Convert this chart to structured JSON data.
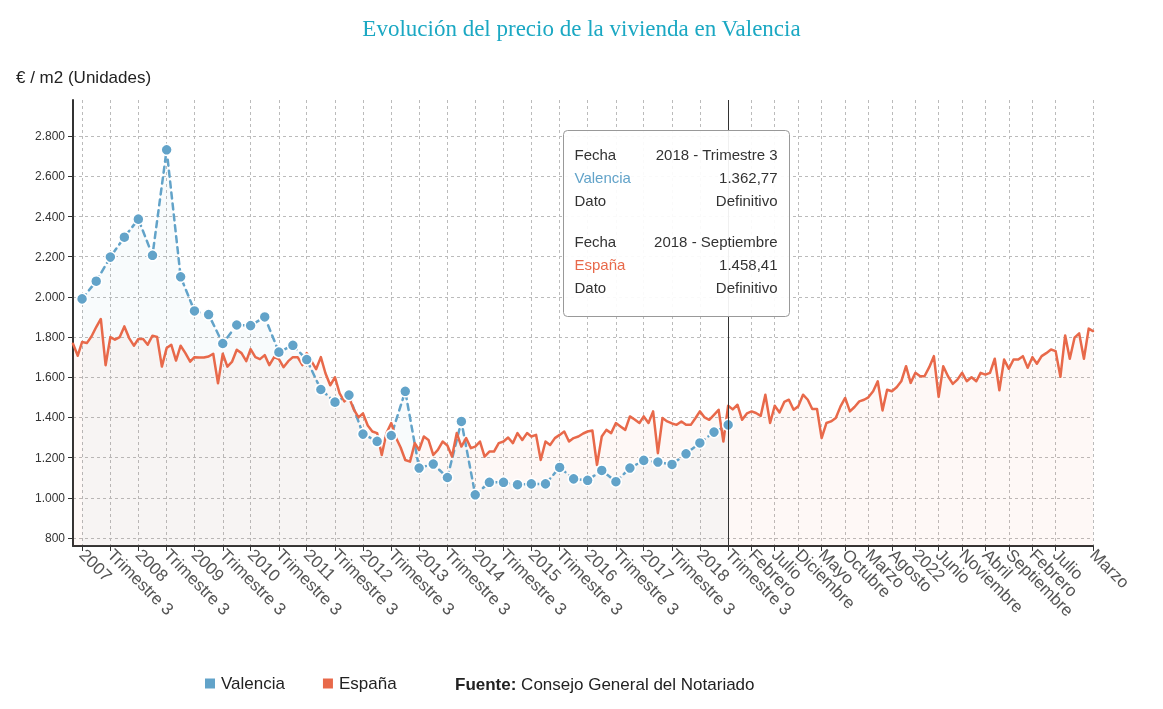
{
  "chart_data": {
    "type": "area",
    "title": "Evolución del precio de la vivienda en Valencia",
    "ylabel": "€ / m2 (Unidades)",
    "xlim": [
      "2007-01",
      "2025-03"
    ],
    "xticks": [
      {
        "value": "2007-03",
        "label": "2007"
      },
      {
        "value": "2007-09",
        "label": "Trimestre 3"
      },
      {
        "value": "2008-03",
        "label": "2008"
      },
      {
        "value": "2008-09",
        "label": "Trimestre 3"
      },
      {
        "value": "2009-03",
        "label": "2009"
      },
      {
        "value": "2009-09",
        "label": "Trimestre 3"
      },
      {
        "value": "2010-03",
        "label": "2010"
      },
      {
        "value": "2010-09",
        "label": "Trimestre 3"
      },
      {
        "value": "2011-03",
        "label": "2011"
      },
      {
        "value": "2011-09",
        "label": "Trimestre 3"
      },
      {
        "value": "2012-03",
        "label": "2012"
      },
      {
        "value": "2012-09",
        "label": "Trimestre 3"
      },
      {
        "value": "2013-03",
        "label": "2013"
      },
      {
        "value": "2013-09",
        "label": "Trimestre 3"
      },
      {
        "value": "2014-03",
        "label": "2014"
      },
      {
        "value": "2014-09",
        "label": "Trimestre 3"
      },
      {
        "value": "2015-03",
        "label": "2015"
      },
      {
        "value": "2015-09",
        "label": "Trimestre 3"
      },
      {
        "value": "2016-03",
        "label": "2016"
      },
      {
        "value": "2016-09",
        "label": "Trimestre 3"
      },
      {
        "value": "2017-03",
        "label": "2017"
      },
      {
        "value": "2017-09",
        "label": "Trimestre 3"
      },
      {
        "value": "2018-03",
        "label": "2018"
      },
      {
        "value": "2018-09",
        "label": "Trimestre 3"
      },
      {
        "value": "2019-02",
        "label": "Febrero"
      },
      {
        "value": "2019-07",
        "label": "Julio"
      },
      {
        "value": "2019-12",
        "label": "Diciembre"
      },
      {
        "value": "2020-05",
        "label": "Mayo"
      },
      {
        "value": "2020-10",
        "label": "Octubre"
      },
      {
        "value": "2021-03",
        "label": "Marzo"
      },
      {
        "value": "2021-08",
        "label": "Agosto"
      },
      {
        "value": "2022-01",
        "label": "2022"
      },
      {
        "value": "2022-06",
        "label": "Junio"
      },
      {
        "value": "2022-11",
        "label": "Noviembre"
      },
      {
        "value": "2023-04",
        "label": "Abril"
      },
      {
        "value": "2023-09",
        "label": "Septiembre"
      },
      {
        "value": "2024-02",
        "label": "Febrero"
      },
      {
        "value": "2024-07",
        "label": "Julio"
      },
      {
        "value": "2025-03",
        "label": "Marzo"
      }
    ],
    "ylim": [
      760,
      2980
    ],
    "yticks": [
      {
        "value": 800,
        "label": "800"
      },
      {
        "value": 1000,
        "label": "1.000"
      },
      {
        "value": 1200,
        "label": "1.200"
      },
      {
        "value": 1400,
        "label": "1.400"
      },
      {
        "value": 1600,
        "label": "1.600"
      },
      {
        "value": 1800,
        "label": "1.800"
      },
      {
        "value": 2000,
        "label": "2.000"
      },
      {
        "value": 2200,
        "label": "2.200"
      },
      {
        "value": 2400,
        "label": "2.400"
      },
      {
        "value": 2600,
        "label": "2.600"
      },
      {
        "value": 2800,
        "label": "2.800"
      }
    ],
    "grid": true,
    "legend": "bottom",
    "ref_lines": [
      {
        "axis": "x",
        "value": "2018-09",
        "color": "#333333"
      }
    ],
    "annotations": [
      "Fuente: Consejo General del Notariado",
      "Fecha",
      "2018 - Trimestre 3",
      "Valencia",
      "1.362,77",
      "Dato",
      "Definitivo",
      "Fecha",
      "2018 - Septiembre",
      "España",
      "1.458,41",
      "Dato",
      "Definitivo"
    ],
    "series": [
      {
        "name": "Valencia",
        "color": "#62a3c9",
        "marker": "circle",
        "line_style": "dashed",
        "x": [
          "2007-03",
          "2007-06",
          "2007-09",
          "2007-12",
          "2008-03",
          "2008-06",
          "2008-09",
          "2008-12",
          "2009-03",
          "2009-06",
          "2009-09",
          "2009-12",
          "2010-03",
          "2010-06",
          "2010-09",
          "2010-12",
          "2011-03",
          "2011-06",
          "2011-09",
          "2011-12",
          "2012-03",
          "2012-06",
          "2012-09",
          "2012-12",
          "2013-03",
          "2013-06",
          "2013-09",
          "2013-12",
          "2014-03",
          "2014-06",
          "2014-09",
          "2014-12",
          "2015-03",
          "2015-06",
          "2015-09",
          "2015-12",
          "2016-03",
          "2016-06",
          "2016-09",
          "2016-12",
          "2017-03",
          "2017-06",
          "2017-09",
          "2017-12",
          "2018-03",
          "2018-06",
          "2018-09"
        ],
        "values": [
          1990,
          2078,
          2198,
          2297,
          2387,
          2207,
          2732,
          2100,
          1930,
          1912,
          1768,
          1860,
          1857,
          1900,
          1725,
          1759,
          1688,
          1539,
          1476,
          1511,
          1317,
          1281,
          1310,
          1530,
          1148,
          1168,
          1101,
          1380,
          1015,
          1077,
          1077,
          1065,
          1069,
          1069,
          1151,
          1094,
          1087,
          1136,
          1080,
          1148,
          1186,
          1178,
          1166,
          1219,
          1273,
          1327,
          1362.77
        ]
      },
      {
        "name": "España",
        "color": "#e8694a",
        "marker": "none",
        "line_style": "solid",
        "x": [
          "2007-01",
          "2007-02",
          "2007-03",
          "2007-04",
          "2007-05",
          "2007-06",
          "2007-07",
          "2007-08",
          "2007-09",
          "2007-10",
          "2007-11",
          "2007-12",
          "2008-01",
          "2008-02",
          "2008-03",
          "2008-04",
          "2008-05",
          "2008-06",
          "2008-07",
          "2008-08",
          "2008-09",
          "2008-10",
          "2008-11",
          "2008-12",
          "2009-01",
          "2009-02",
          "2009-03",
          "2009-04",
          "2009-05",
          "2009-06",
          "2009-07",
          "2009-08",
          "2009-09",
          "2009-10",
          "2009-11",
          "2009-12",
          "2010-01",
          "2010-02",
          "2010-03",
          "2010-04",
          "2010-05",
          "2010-06",
          "2010-07",
          "2010-08",
          "2010-09",
          "2010-10",
          "2010-11",
          "2010-12",
          "2011-01",
          "2011-02",
          "2011-03",
          "2011-04",
          "2011-05",
          "2011-06",
          "2011-07",
          "2011-08",
          "2011-09",
          "2011-10",
          "2011-11",
          "2011-12",
          "2012-01",
          "2012-02",
          "2012-03",
          "2012-04",
          "2012-05",
          "2012-06",
          "2012-07",
          "2012-08",
          "2012-09",
          "2012-10",
          "2012-11",
          "2012-12",
          "2013-01",
          "2013-02",
          "2013-03",
          "2013-04",
          "2013-05",
          "2013-06",
          "2013-07",
          "2013-08",
          "2013-09",
          "2013-10",
          "2013-11",
          "2013-12",
          "2014-01",
          "2014-02",
          "2014-03",
          "2014-04",
          "2014-05",
          "2014-06",
          "2014-07",
          "2014-08",
          "2014-09",
          "2014-10",
          "2014-11",
          "2014-12",
          "2015-01",
          "2015-02",
          "2015-03",
          "2015-04",
          "2015-05",
          "2015-06",
          "2015-07",
          "2015-08",
          "2015-09",
          "2015-10",
          "2015-11",
          "2015-12",
          "2016-01",
          "2016-02",
          "2016-03",
          "2016-04",
          "2016-05",
          "2016-06",
          "2016-07",
          "2016-08",
          "2016-09",
          "2016-10",
          "2016-11",
          "2016-12",
          "2017-01",
          "2017-02",
          "2017-03",
          "2017-04",
          "2017-05",
          "2017-06",
          "2017-07",
          "2017-08",
          "2017-09",
          "2017-10",
          "2017-11",
          "2017-12",
          "2018-01",
          "2018-02",
          "2018-03",
          "2018-04",
          "2018-05",
          "2018-06",
          "2018-07",
          "2018-08",
          "2018-09",
          "2018-10",
          "2018-11",
          "2018-12",
          "2019-01",
          "2019-02",
          "2019-03",
          "2019-04",
          "2019-05",
          "2019-06",
          "2019-07",
          "2019-08",
          "2019-09",
          "2019-10",
          "2019-11",
          "2019-12",
          "2020-01",
          "2020-02",
          "2020-03",
          "2020-04",
          "2020-05",
          "2020-06",
          "2020-07",
          "2020-08",
          "2020-09",
          "2020-10",
          "2020-11",
          "2020-12",
          "2021-01",
          "2021-02",
          "2021-03",
          "2021-04",
          "2021-05",
          "2021-06",
          "2021-07",
          "2021-08",
          "2021-09",
          "2021-10",
          "2021-11",
          "2021-12",
          "2022-01",
          "2022-02",
          "2022-03",
          "2022-04",
          "2022-05",
          "2022-06",
          "2022-07",
          "2022-08",
          "2022-09",
          "2022-10",
          "2022-11",
          "2022-12",
          "2023-01",
          "2023-02",
          "2023-03",
          "2023-04",
          "2023-05",
          "2023-06",
          "2023-07",
          "2023-08",
          "2023-09",
          "2023-10",
          "2023-11",
          "2023-12",
          "2024-01",
          "2024-02",
          "2024-03",
          "2024-04",
          "2024-05",
          "2024-06",
          "2024-07",
          "2024-08",
          "2024-09",
          "2024-10",
          "2024-11",
          "2024-12",
          "2025-01",
          "2025-02",
          "2025-03"
        ],
        "values": [
          1767,
          1707,
          1775,
          1770,
          1803,
          1850,
          1890,
          1660,
          1800,
          1787,
          1800,
          1853,
          1795,
          1757,
          1790,
          1790,
          1762,
          1807,
          1800,
          1653,
          1745,
          1762,
          1683,
          1757,
          1720,
          1678,
          1700,
          1698,
          1698,
          1703,
          1717,
          1570,
          1717,
          1653,
          1678,
          1737,
          1720,
          1680,
          1740,
          1700,
          1690,
          1710,
          1660,
          1700,
          1690,
          1650,
          1680,
          1700,
          1700,
          1660,
          1720,
          1680,
          1640,
          1700,
          1620,
          1560,
          1600,
          1520,
          1480,
          1500,
          1440,
          1400,
          1420,
          1360,
          1330,
          1322,
          1213,
          1322,
          1372,
          1300,
          1250,
          1188,
          1180,
          1272,
          1238,
          1305,
          1288,
          1213,
          1238,
          1280,
          1260,
          1205,
          1322,
          1255,
          1297,
          1247,
          1255,
          1280,
          1205,
          1230,
          1230,
          1272,
          1280,
          1300,
          1272,
          1322,
          1288,
          1322,
          1305,
          1313,
          1188,
          1280,
          1263,
          1297,
          1313,
          1330,
          1280,
          1297,
          1305,
          1320,
          1330,
          1335,
          1163,
          1305,
          1338,
          1322,
          1372,
          1355,
          1338,
          1405,
          1390,
          1372,
          1405,
          1372,
          1430,
          1222,
          1397,
          1380,
          1370,
          1363,
          1380,
          1363,
          1363,
          1397,
          1430,
          1400,
          1388,
          1413,
          1438,
          1280,
          1458.41,
          1440,
          1463,
          1388,
          1420,
          1430,
          1422,
          1408,
          1513,
          1372,
          1458,
          1425,
          1477,
          1488,
          1438,
          1455,
          1513,
          1488,
          1442,
          1442,
          1297,
          1372,
          1380,
          1397,
          1455,
          1497,
          1430,
          1452,
          1480,
          1488,
          1500,
          1530,
          1580,
          1435,
          1538,
          1530,
          1550,
          1580,
          1655,
          1572,
          1622,
          1605,
          1605,
          1650,
          1705,
          1502,
          1655,
          1605,
          1567,
          1588,
          1622,
          1580,
          1600,
          1580,
          1622,
          1613,
          1622,
          1692,
          1535,
          1688,
          1642,
          1688,
          1688,
          1705,
          1647,
          1700,
          1667,
          1705,
          1720,
          1738,
          1730,
          1602,
          1808,
          1692,
          1797,
          1818,
          1692,
          1842,
          1830
        ]
      }
    ]
  }
}
